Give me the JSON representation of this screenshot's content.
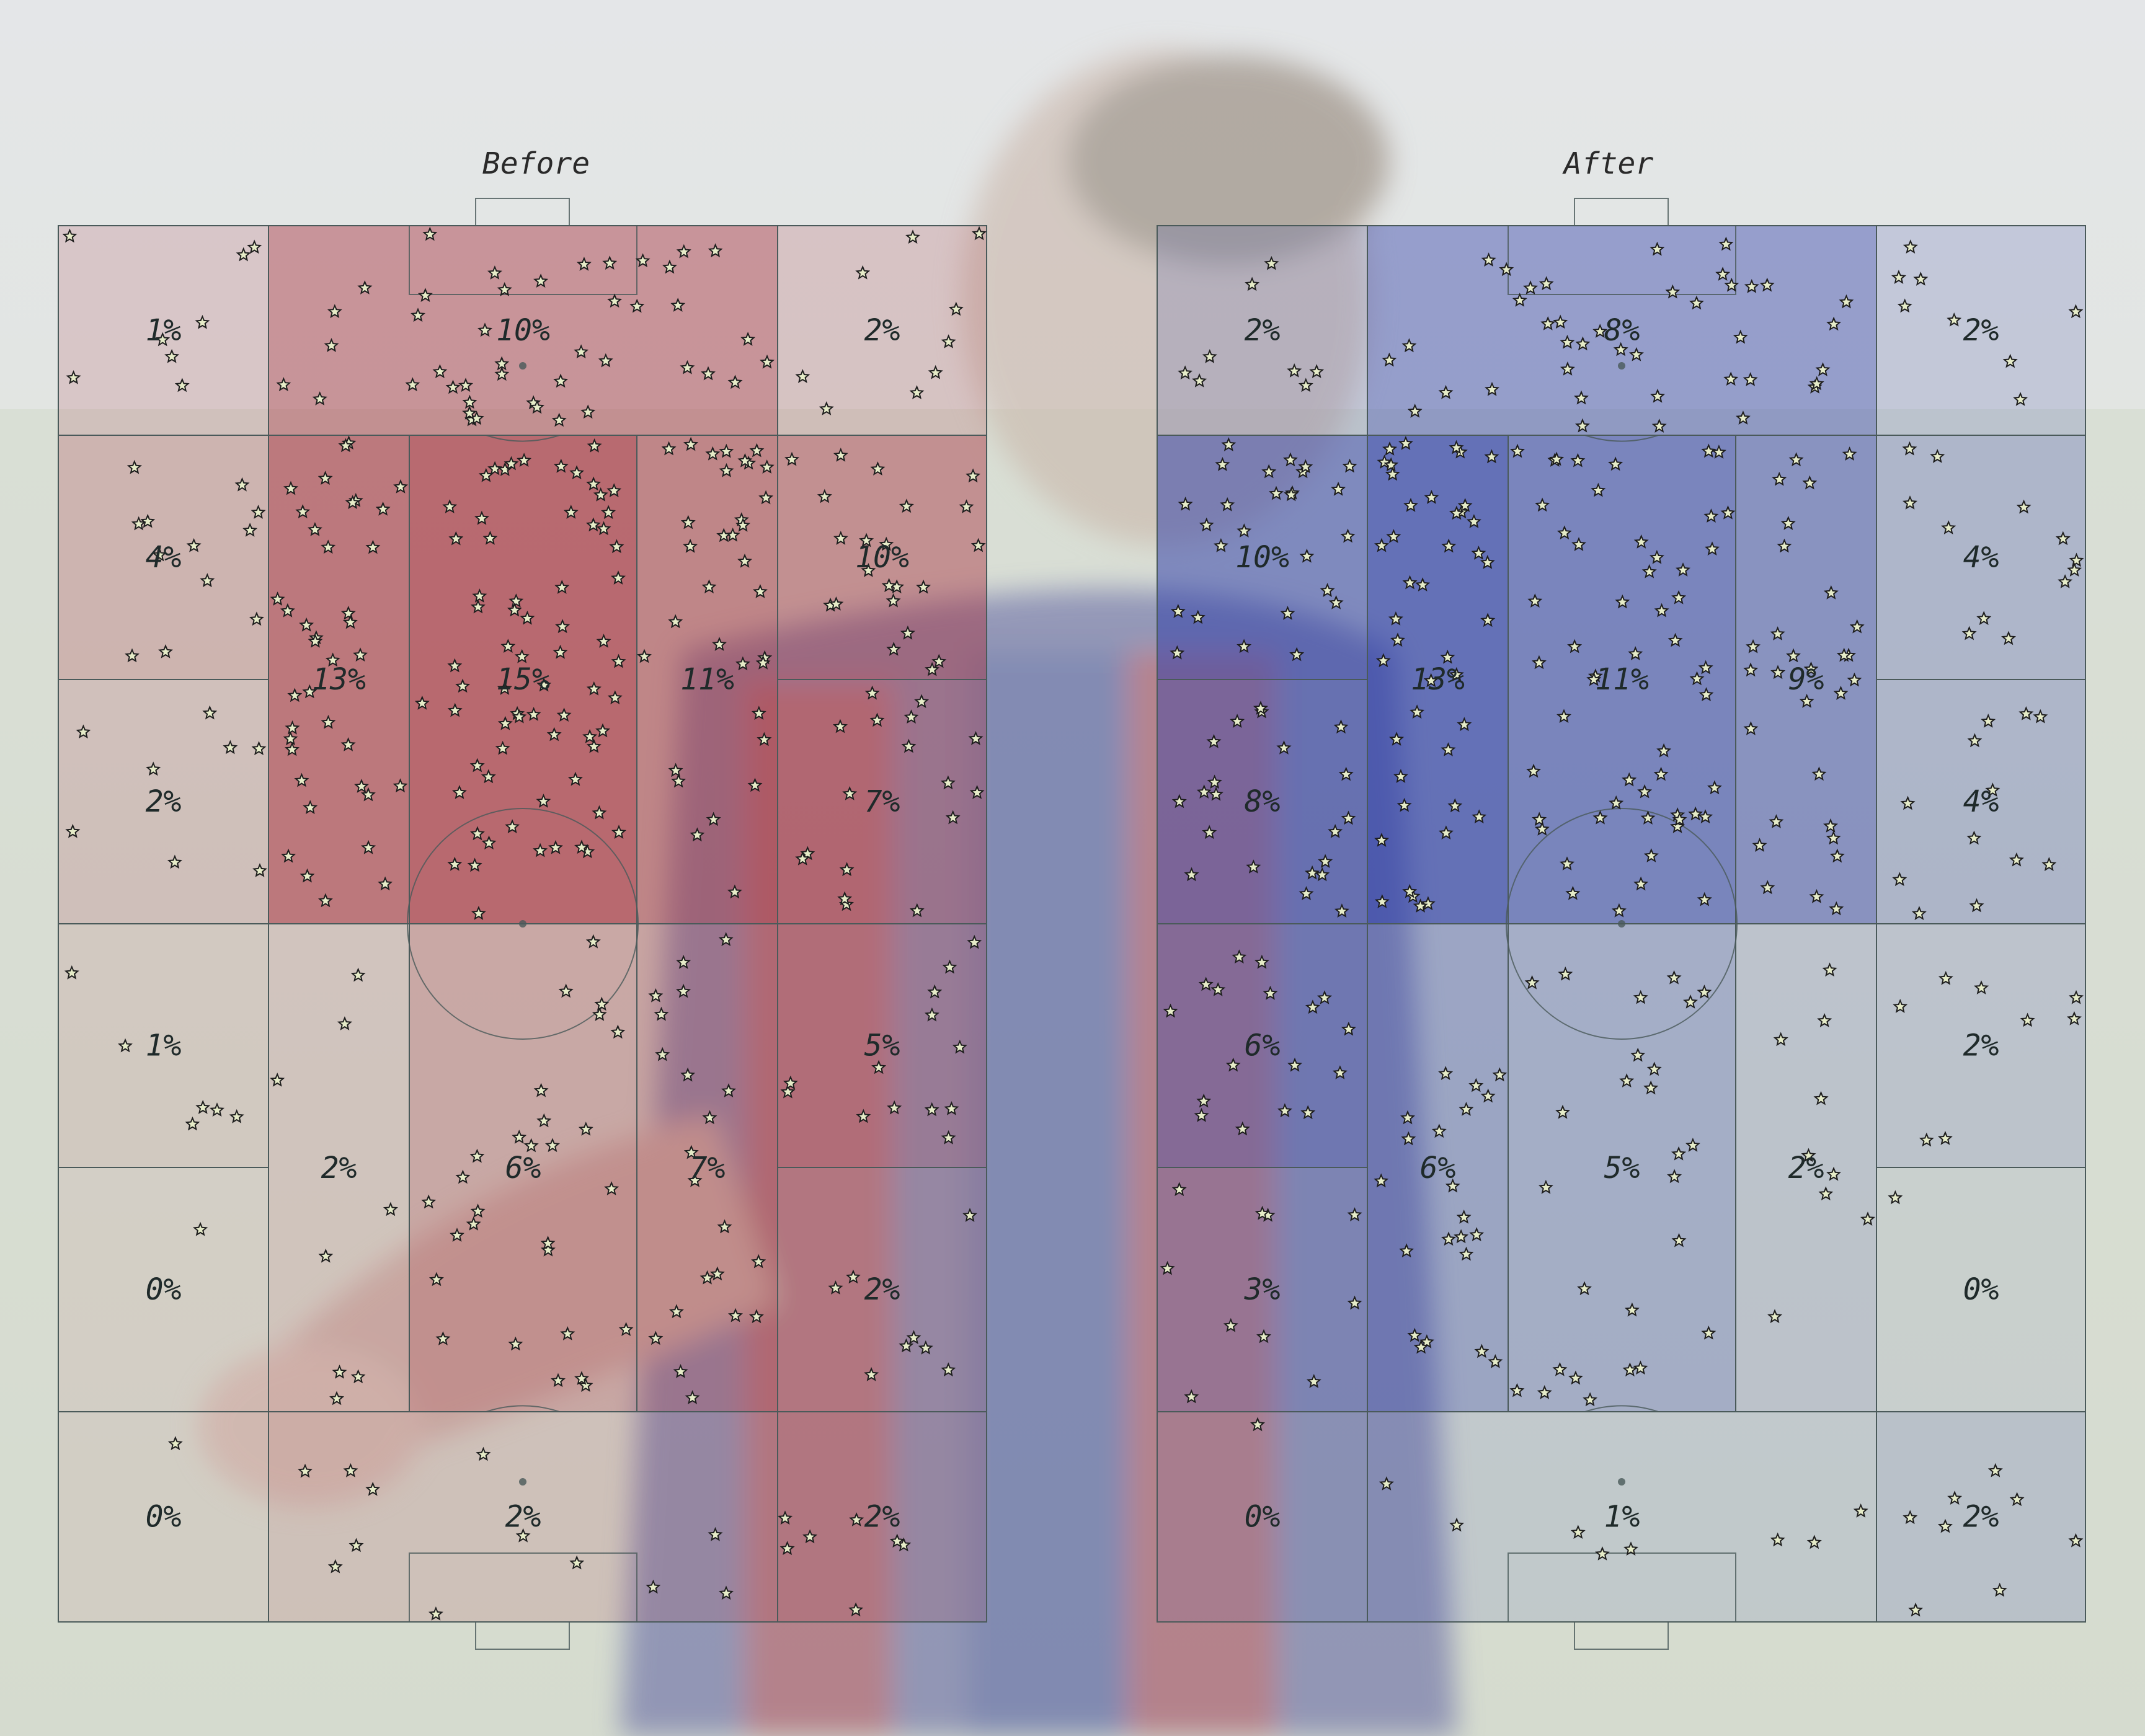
{
  "colors": {
    "before_heat": "#a8323f",
    "after_heat": "#2a3aa8",
    "pitch_lines": "#4a5a5a",
    "star_fill": "#e6ecc8",
    "star_stroke": "#1d1d1d"
  },
  "chart_data": [
    {
      "type": "heatmap",
      "title": "Before",
      "pitch": "vertical full pitch, attacking upward",
      "zones": {
        "row_labels_from_top": [
          "row1",
          "row2",
          "row3",
          "row4",
          "row5",
          "row6"
        ],
        "values_pct": [
          {
            "zone": "top-left",
            "value": 1
          },
          {
            "zone": "top-center",
            "value": 10
          },
          {
            "zone": "top-right",
            "value": 2
          },
          {
            "zone": "upper-left",
            "value": 4
          },
          {
            "zone": "upper-center-left",
            "value": 13
          },
          {
            "zone": "upper-center",
            "value": 15
          },
          {
            "zone": "upper-center-right",
            "value": 11
          },
          {
            "zone": "upper-right",
            "value": 10
          },
          {
            "zone": "mid-left",
            "value": 2
          },
          {
            "zone": "mid-right",
            "value": 7
          },
          {
            "zone": "lower-left",
            "value": 1
          },
          {
            "zone": "lower-right",
            "value": 5
          },
          {
            "zone": "low-center-left",
            "value": 2
          },
          {
            "zone": "low-center",
            "value": 6
          },
          {
            "zone": "low-center-right",
            "value": 7
          },
          {
            "zone": "deep-left",
            "value": 0
          },
          {
            "zone": "deep-right",
            "value": 2
          },
          {
            "zone": "bottom-left",
            "value": 0
          },
          {
            "zone": "bottom-center",
            "value": 2
          },
          {
            "zone": "bottom-right",
            "value": 2
          }
        ]
      },
      "labels": [
        "1%",
        "10%",
        "2%",
        "4%",
        "13%",
        "15%",
        "11%",
        "10%",
        "2%",
        "7%",
        "1%",
        "5%",
        "2%",
        "6%",
        "7%",
        "0%",
        "2%",
        "0%",
        "2%",
        "2%"
      ],
      "marker": "star"
    },
    {
      "type": "heatmap",
      "title": "After",
      "pitch": "vertical full pitch, attacking upward",
      "labels": [
        "2%",
        "8%",
        "2%",
        "10%",
        "13%",
        "11%",
        "9%",
        "4%",
        "8%",
        "4%",
        "6%",
        "2%",
        "6%",
        "5%",
        "2%",
        "3%",
        "0%",
        "0%",
        "1%",
        "2%"
      ],
      "marker": "star"
    }
  ],
  "panels": {
    "before": {
      "title": "Before",
      "zones": [
        {
          "id": "b-tl",
          "label": "1%",
          "alpha": 0.12
        },
        {
          "id": "b-tc",
          "label": "10%",
          "alpha": 0.5
        },
        {
          "id": "b-tr",
          "label": "2%",
          "alpha": 0.15
        },
        {
          "id": "b-r2l",
          "label": "4%",
          "alpha": 0.22
        },
        {
          "id": "b-r2cl",
          "label": "13%",
          "alpha": 0.68
        },
        {
          "id": "b-r2c",
          "label": "15%",
          "alpha": 0.8
        },
        {
          "id": "b-r2cr",
          "label": "11%",
          "alpha": 0.58
        },
        {
          "id": "b-r2r",
          "label": "10%",
          "alpha": 0.5
        },
        {
          "id": "b-r3l",
          "label": "2%",
          "alpha": 0.12
        },
        {
          "id": "b-r3r",
          "label": "7%",
          "alpha": 0.36
        },
        {
          "id": "b-r4l",
          "label": "1%",
          "alpha": 0.05
        },
        {
          "id": "b-r4r",
          "label": "5%",
          "alpha": 0.25
        },
        {
          "id": "b-r4cl",
          "label": "2%",
          "alpha": 0.08
        },
        {
          "id": "b-r4c",
          "label": "6%",
          "alpha": 0.3
        },
        {
          "id": "b-r4cr",
          "label": "7%",
          "alpha": 0.34
        },
        {
          "id": "b-r5l",
          "label": "0%",
          "alpha": 0.0
        },
        {
          "id": "b-r5r",
          "label": "2%",
          "alpha": 0.1
        },
        {
          "id": "b-r6l",
          "label": "0%",
          "alpha": 0.0
        },
        {
          "id": "b-r6c",
          "label": "2%",
          "alpha": 0.1
        },
        {
          "id": "b-r6r",
          "label": "2%",
          "alpha": 0.1
        }
      ]
    },
    "after": {
      "title": "After",
      "zones": [
        {
          "id": "a-tl",
          "label": "2%",
          "alpha": 0.12
        },
        {
          "id": "a-tc",
          "label": "8%",
          "alpha": 0.45
        },
        {
          "id": "a-tr",
          "label": "2%",
          "alpha": 0.12
        },
        {
          "id": "a-r2l",
          "label": "10%",
          "alpha": 0.58
        },
        {
          "id": "a-r2cl",
          "label": "13%",
          "alpha": 0.78
        },
        {
          "id": "a-r2c",
          "label": "11%",
          "alpha": 0.62
        },
        {
          "id": "a-r2cr",
          "label": "9%",
          "alpha": 0.5
        },
        {
          "id": "a-r2r",
          "label": "4%",
          "alpha": 0.22
        },
        {
          "id": "a-r3l",
          "label": "8%",
          "alpha": 0.45
        },
        {
          "id": "a-r3r",
          "label": "4%",
          "alpha": 0.22
        },
        {
          "id": "a-r4l",
          "label": "6%",
          "alpha": 0.35
        },
        {
          "id": "a-r4r",
          "label": "2%",
          "alpha": 0.1
        },
        {
          "id": "a-r4cl",
          "label": "6%",
          "alpha": 0.35
        },
        {
          "id": "a-r4c",
          "label": "5%",
          "alpha": 0.28
        },
        {
          "id": "a-r4cr",
          "label": "2%",
          "alpha": 0.1
        },
        {
          "id": "a-r5l",
          "label": "3%",
          "alpha": 0.16
        },
        {
          "id": "a-r5r",
          "label": "0%",
          "alpha": 0.0
        },
        {
          "id": "a-r6l",
          "label": "0%",
          "alpha": 0.0
        },
        {
          "id": "a-r6c",
          "label": "1%",
          "alpha": 0.05
        },
        {
          "id": "a-r6r",
          "label": "2%",
          "alpha": 0.12
        }
      ]
    }
  }
}
